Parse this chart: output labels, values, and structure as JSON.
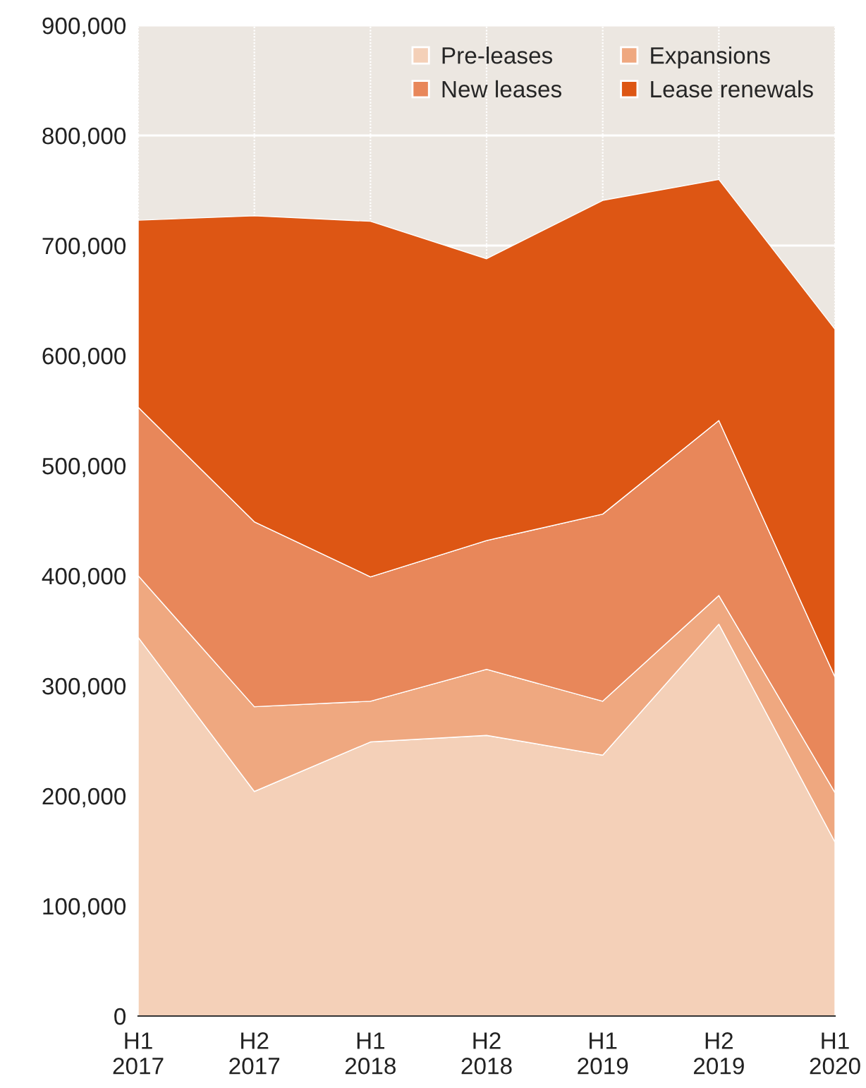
{
  "chart_data": {
    "type": "area",
    "stacked": true,
    "categories": [
      "H1\n2017",
      "H2\n2017",
      "H1\n2018",
      "H2\n2018",
      "H1\n2019",
      "H2\n2019",
      "H1\n2020"
    ],
    "series": [
      {
        "name": "Pre-leases",
        "color": "#f4d0b8",
        "values": [
          344000,
          204000,
          249000,
          255000,
          237000,
          356000,
          158000
        ]
      },
      {
        "name": "Expansions",
        "color": "#efa880",
        "values": [
          56000,
          77000,
          37000,
          60000,
          49000,
          26000,
          45000
        ]
      },
      {
        "name": "New leases",
        "color": "#e8875a",
        "values": [
          153000,
          168000,
          113000,
          117000,
          170000,
          159000,
          105000
        ]
      },
      {
        "name": "Lease renewals",
        "color": "#dd5614",
        "values": [
          170000,
          278000,
          323000,
          256000,
          285000,
          219000,
          316000
        ]
      }
    ],
    "ylim": [
      0,
      900000
    ],
    "yticks": [
      {
        "value": 0,
        "label": "0"
      },
      {
        "value": 100000,
        "label": "100,000"
      },
      {
        "value": 200000,
        "label": "200,000"
      },
      {
        "value": 300000,
        "label": "300,000"
      },
      {
        "value": 400000,
        "label": "400,000"
      },
      {
        "value": 500000,
        "label": "500,000"
      },
      {
        "value": 600000,
        "label": "600,000"
      },
      {
        "value": 700000,
        "label": "700,000"
      },
      {
        "value": 800000,
        "label": "800,000"
      },
      {
        "value": 900000,
        "label": "900,000"
      }
    ],
    "grid": true,
    "legend": "top right"
  }
}
